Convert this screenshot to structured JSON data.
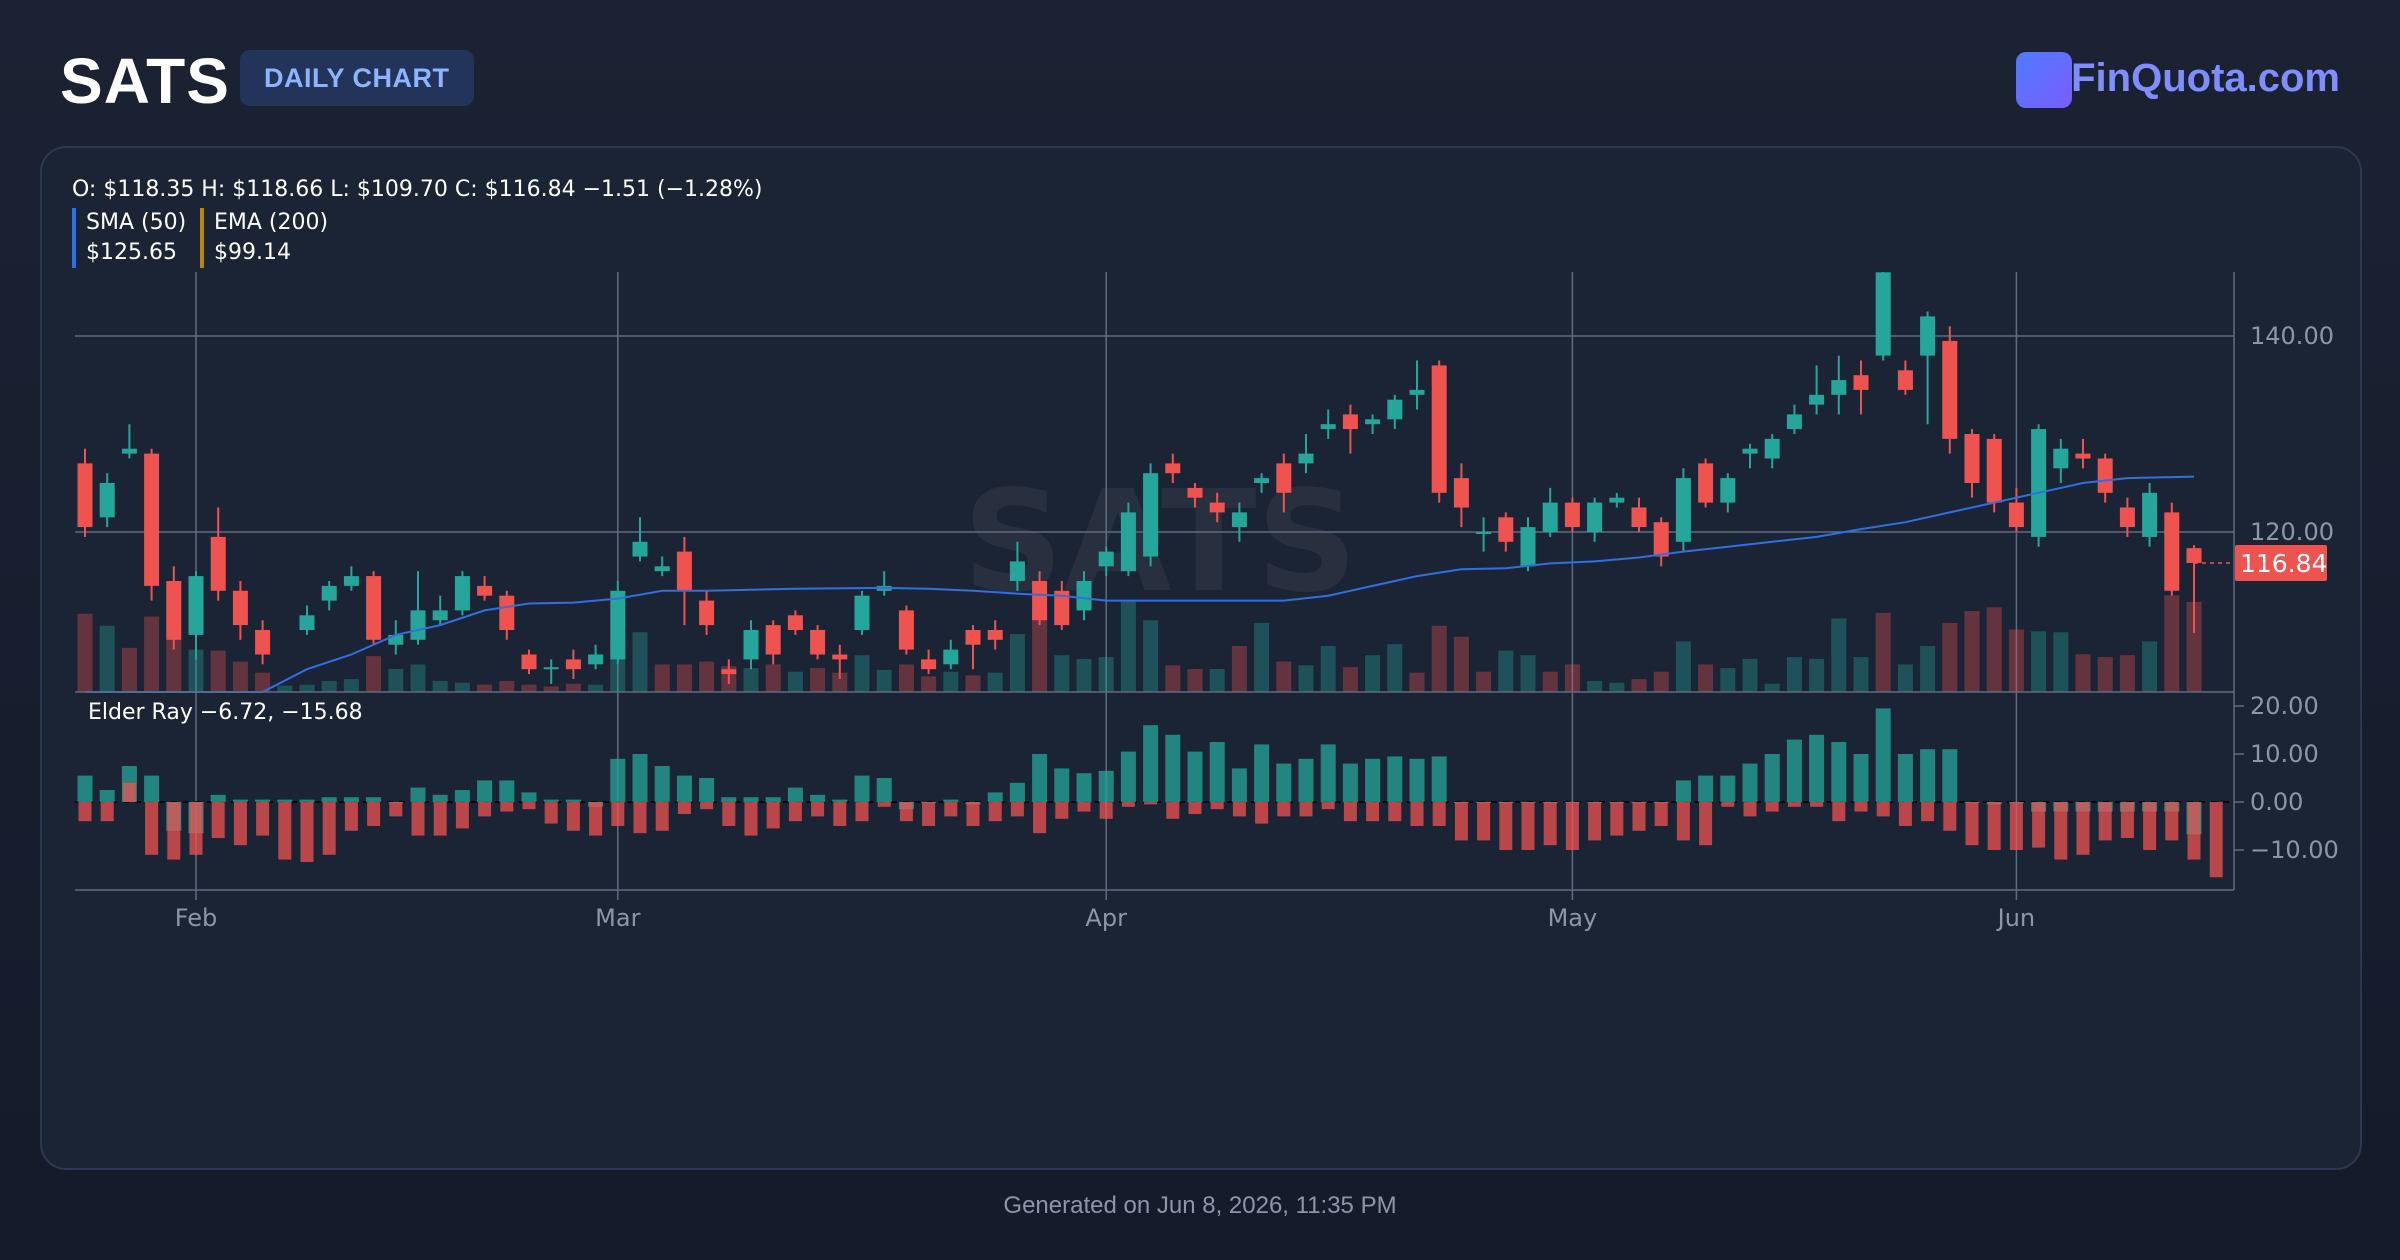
{
  "header": {
    "ticker": "SATS",
    "badge": "DAILY CHART",
    "brand": "FinQuota.com"
  },
  "ohlc_text": "O: $118.35 H: $118.66 L: $109.70 C: $116.84 −1.51 (−1.28%)",
  "legend": {
    "sma_label": "SMA (50)",
    "sma_value": "$125.65",
    "ema_label": "EMA (200)",
    "ema_value": "$99.14"
  },
  "elder_label": "Elder Ray −6.72, −15.68",
  "watermark": "SATS",
  "last_price_label": "116.84",
  "footer": "Generated on Jun 8, 2026, 11:35 PM",
  "colors": {
    "up": "#26a69a",
    "down": "#ef5350",
    "sma": "#2f6fe0",
    "grid": "#5f6b80",
    "axis_text": "#8d96a8"
  },
  "chart_data": {
    "type": "candlestick",
    "price_axis": {
      "ticks": [
        120,
        140
      ],
      "tick_labels": [
        "120.00",
        "140.00"
      ],
      "range": [
        104,
        148
      ]
    },
    "elder_axis": {
      "ticks": [
        20,
        10,
        0,
        -10
      ],
      "tick_labels": [
        "20.00",
        "10.00",
        "0.00",
        "−10.00"
      ],
      "range": [
        -19,
        23
      ]
    },
    "x_ticks": [
      {
        "label": "Feb",
        "index": 5
      },
      {
        "label": "Mar",
        "index": 24
      },
      {
        "label": "Apr",
        "index": 46
      },
      {
        "label": "May",
        "index": 67
      },
      {
        "label": "Jun",
        "index": 87
      }
    ],
    "candles": [
      [
        127.0,
        120.5,
        128.5,
        119.5
      ],
      [
        121.5,
        125.0,
        126.0,
        120.5
      ],
      [
        128.0,
        128.5,
        131.0,
        127.5
      ],
      [
        128.0,
        114.5,
        128.5,
        113.0
      ],
      [
        115.0,
        109.0,
        116.5,
        108.0
      ],
      [
        109.5,
        115.5,
        116.0,
        107.0
      ],
      [
        119.5,
        114.0,
        122.5,
        113.0
      ],
      [
        114.0,
        110.5,
        115.0,
        109.0
      ],
      [
        110.0,
        107.5,
        111.0,
        106.5
      ],
      [
        102.5,
        99.0,
        103.5,
        98.0
      ],
      [
        110.0,
        111.5,
        112.5,
        109.5
      ],
      [
        113.0,
        114.5,
        115.0,
        112.0
      ],
      [
        114.5,
        115.5,
        116.5,
        114.0
      ],
      [
        115.5,
        109.0,
        116.0,
        108.5
      ],
      [
        108.5,
        109.5,
        111.0,
        107.5
      ],
      [
        109.0,
        112.0,
        116.0,
        108.5
      ],
      [
        111.0,
        112.0,
        113.5,
        110.5
      ],
      [
        112.0,
        115.5,
        116.0,
        111.5
      ],
      [
        114.5,
        113.5,
        115.5,
        113.0
      ],
      [
        113.5,
        110.0,
        114.0,
        109.0
      ],
      [
        107.5,
        106.0,
        108.0,
        105.5
      ],
      [
        106.0,
        106.2,
        107.0,
        104.5
      ],
      [
        107.0,
        106.0,
        108.0,
        105.0
      ],
      [
        106.5,
        107.5,
        108.5,
        106.0
      ],
      [
        107.0,
        114.0,
        115.0,
        106.5
      ],
      [
        117.5,
        119.0,
        121.5,
        117.0
      ],
      [
        116.0,
        116.5,
        117.5,
        115.5
      ],
      [
        118.0,
        114.0,
        119.5,
        110.5
      ],
      [
        113.0,
        110.5,
        114.0,
        109.5
      ],
      [
        106.0,
        105.5,
        107.0,
        104.5
      ],
      [
        107.0,
        110.0,
        111.0,
        106.0
      ],
      [
        110.5,
        107.5,
        111.0,
        106.5
      ],
      [
        111.5,
        110.0,
        112.0,
        109.5
      ],
      [
        110.0,
        107.5,
        110.5,
        107.0
      ],
      [
        107.5,
        107.0,
        108.5,
        105.0
      ],
      [
        110.0,
        113.5,
        114.0,
        109.5
      ],
      [
        114.0,
        114.5,
        116.0,
        113.5
      ],
      [
        112.0,
        108.0,
        112.5,
        107.5
      ],
      [
        107.0,
        106.0,
        108.0,
        105.5
      ],
      [
        106.5,
        108.0,
        109.0,
        106.0
      ],
      [
        110.0,
        108.5,
        110.5,
        106.0
      ],
      [
        110.0,
        109.0,
        111.0,
        108.0
      ],
      [
        115.0,
        117.0,
        119.0,
        114.0
      ],
      [
        115.0,
        111.0,
        116.0,
        110.5
      ],
      [
        114.0,
        110.5,
        115.0,
        110.0
      ],
      [
        112.0,
        115.0,
        116.0,
        111.0
      ],
      [
        116.5,
        118.0,
        118.5,
        115.5
      ],
      [
        116.0,
        122.0,
        123.0,
        115.5
      ],
      [
        117.5,
        126.0,
        127.0,
        116.5
      ],
      [
        127.0,
        126.0,
        128.0,
        125.0
      ],
      [
        124.5,
        123.5,
        125.0,
        122.5
      ],
      [
        123.0,
        122.0,
        124.0,
        121.0
      ],
      [
        120.5,
        122.0,
        123.0,
        119.0
      ],
      [
        125.0,
        125.5,
        126.0,
        124.0
      ],
      [
        127.0,
        124.0,
        128.0,
        122.0
      ],
      [
        127.0,
        128.0,
        130.0,
        126.0
      ],
      [
        130.5,
        131.0,
        132.5,
        129.5
      ],
      [
        132.0,
        130.5,
        133.0,
        128.0
      ],
      [
        131.0,
        131.5,
        132.0,
        130.0
      ],
      [
        131.5,
        133.5,
        134.0,
        130.5
      ],
      [
        134.0,
        134.5,
        137.5,
        132.5
      ],
      [
        137.0,
        124.0,
        137.5,
        123.0
      ],
      [
        125.5,
        122.5,
        127.0,
        120.5
      ],
      [
        120.0,
        120.0,
        121.5,
        118.0
      ],
      [
        121.5,
        119.0,
        122.0,
        118.0
      ],
      [
        116.5,
        120.5,
        121.5,
        116.0
      ],
      [
        120.0,
        123.0,
        124.5,
        119.5
      ],
      [
        123.0,
        120.5,
        123.5,
        120.0
      ],
      [
        120.0,
        123.0,
        123.5,
        119.0
      ],
      [
        123.0,
        123.5,
        124.0,
        122.5
      ],
      [
        122.5,
        120.5,
        123.5,
        120.0
      ],
      [
        121.0,
        117.5,
        121.5,
        116.5
      ],
      [
        119.0,
        125.5,
        126.5,
        118.0
      ],
      [
        127.0,
        123.0,
        127.5,
        122.5
      ],
      [
        123.0,
        125.5,
        126.0,
        122.0
      ],
      [
        128.0,
        128.5,
        129.0,
        126.5
      ],
      [
        127.5,
        129.5,
        130.0,
        126.5
      ],
      [
        130.5,
        132.0,
        133.0,
        130.0
      ],
      [
        133.0,
        134.0,
        137.0,
        132.0
      ],
      [
        134.0,
        135.5,
        138.0,
        132.0
      ],
      [
        136.0,
        134.5,
        137.5,
        132.0
      ],
      [
        138.0,
        146.5,
        147.0,
        137.5
      ],
      [
        136.5,
        134.5,
        137.5,
        134.0
      ],
      [
        138.0,
        142.0,
        142.5,
        131.0
      ],
      [
        139.5,
        129.5,
        141.0,
        128.0
      ],
      [
        130.0,
        125.0,
        130.5,
        123.5
      ],
      [
        129.5,
        123.0,
        130.0,
        122.0
      ],
      [
        123.0,
        120.5,
        124.5,
        120.0
      ],
      [
        119.5,
        130.5,
        131.0,
        118.5
      ],
      [
        126.5,
        128.5,
        129.5,
        125.0
      ],
      [
        128.0,
        127.5,
        129.5,
        126.5
      ],
      [
        127.5,
        124.0,
        128.0,
        123.0
      ],
      [
        122.5,
        120.5,
        123.5,
        119.5
      ],
      [
        119.5,
        124.0,
        125.0,
        118.5
      ],
      [
        122.0,
        114.0,
        123.0,
        113.5
      ],
      [
        118.35,
        116.84,
        118.66,
        109.7
      ]
    ],
    "volume": [
      {
        "v": 0.85,
        "up": false
      },
      {
        "v": 0.72,
        "up": true
      },
      {
        "v": 0.48,
        "up": false
      },
      {
        "v": 0.82,
        "up": false
      },
      {
        "v": 0.58,
        "up": false
      },
      {
        "v": 0.46,
        "up": true
      },
      {
        "v": 0.45,
        "up": false
      },
      {
        "v": 0.33,
        "up": false
      },
      {
        "v": 0.21,
        "up": false
      },
      {
        "v": 0.07,
        "up": true
      },
      {
        "v": 0.08,
        "up": true
      },
      {
        "v": 0.12,
        "up": true
      },
      {
        "v": 0.14,
        "up": true
      },
      {
        "v": 0.39,
        "up": false
      },
      {
        "v": 0.25,
        "up": true
      },
      {
        "v": 0.3,
        "up": true
      },
      {
        "v": 0.12,
        "up": true
      },
      {
        "v": 0.1,
        "up": true
      },
      {
        "v": 0.08,
        "up": false
      },
      {
        "v": 0.12,
        "up": false
      },
      {
        "v": 0.08,
        "up": false
      },
      {
        "v": 0.06,
        "up": false
      },
      {
        "v": 0.09,
        "up": false
      },
      {
        "v": 0.08,
        "up": true
      },
      {
        "v": 0.55,
        "up": true
      },
      {
        "v": 0.65,
        "up": true
      },
      {
        "v": 0.3,
        "up": false
      },
      {
        "v": 0.3,
        "up": false
      },
      {
        "v": 0.33,
        "up": false
      },
      {
        "v": 0.28,
        "up": false
      },
      {
        "v": 0.26,
        "up": true
      },
      {
        "v": 0.3,
        "up": false
      },
      {
        "v": 0.22,
        "up": true
      },
      {
        "v": 0.26,
        "up": false
      },
      {
        "v": 0.21,
        "up": false
      },
      {
        "v": 0.4,
        "up": true
      },
      {
        "v": 0.24,
        "up": true
      },
      {
        "v": 0.3,
        "up": false
      },
      {
        "v": 0.17,
        "up": false
      },
      {
        "v": 0.22,
        "up": true
      },
      {
        "v": 0.18,
        "up": false
      },
      {
        "v": 0.21,
        "up": true
      },
      {
        "v": 0.63,
        "up": true
      },
      {
        "v": 0.88,
        "up": false
      },
      {
        "v": 0.4,
        "up": true
      },
      {
        "v": 0.36,
        "up": true
      },
      {
        "v": 0.38,
        "up": true
      },
      {
        "v": 1.0,
        "up": true
      },
      {
        "v": 0.78,
        "up": true
      },
      {
        "v": 0.29,
        "up": false
      },
      {
        "v": 0.25,
        "up": false
      },
      {
        "v": 0.25,
        "up": true
      },
      {
        "v": 0.5,
        "up": false
      },
      {
        "v": 0.75,
        "up": true
      },
      {
        "v": 0.33,
        "up": false
      },
      {
        "v": 0.29,
        "up": true
      },
      {
        "v": 0.5,
        "up": true
      },
      {
        "v": 0.27,
        "up": false
      },
      {
        "v": 0.4,
        "up": true
      },
      {
        "v": 0.52,
        "up": true
      },
      {
        "v": 0.21,
        "up": false
      },
      {
        "v": 0.72,
        "up": false
      },
      {
        "v": 0.6,
        "up": false
      },
      {
        "v": 0.22,
        "up": false
      },
      {
        "v": 0.45,
        "up": true
      },
      {
        "v": 0.4,
        "up": true
      },
      {
        "v": 0.22,
        "up": false
      },
      {
        "v": 0.3,
        "up": false
      },
      {
        "v": 0.12,
        "up": true
      },
      {
        "v": 0.1,
        "up": true
      },
      {
        "v": 0.14,
        "up": false
      },
      {
        "v": 0.22,
        "up": false
      },
      {
        "v": 0.55,
        "up": true
      },
      {
        "v": 0.3,
        "up": false
      },
      {
        "v": 0.26,
        "up": true
      },
      {
        "v": 0.36,
        "up": true
      },
      {
        "v": 0.09,
        "up": true
      },
      {
        "v": 0.38,
        "up": true
      },
      {
        "v": 0.36,
        "up": true
      },
      {
        "v": 0.8,
        "up": true
      },
      {
        "v": 0.38,
        "up": true
      },
      {
        "v": 0.86,
        "up": false
      },
      {
        "v": 0.3,
        "up": true
      },
      {
        "v": 0.5,
        "up": true
      },
      {
        "v": 0.75,
        "up": false
      },
      {
        "v": 0.88,
        "up": false
      },
      {
        "v": 0.92,
        "up": false
      },
      {
        "v": 0.68,
        "up": false
      },
      {
        "v": 0.66,
        "up": true
      },
      {
        "v": 0.65,
        "up": true
      },
      {
        "v": 0.41,
        "up": false
      },
      {
        "v": 0.38,
        "up": false
      },
      {
        "v": 0.4,
        "up": false
      },
      {
        "v": 0.55,
        "up": true
      },
      {
        "v": 1.05,
        "up": false
      },
      {
        "v": 0.98,
        "up": false
      }
    ],
    "sma": [
      [
        0,
        103.0
      ],
      [
        3,
        102.0
      ],
      [
        6,
        102.5
      ],
      [
        8,
        103.5
      ],
      [
        10,
        106.0
      ],
      [
        12,
        107.5
      ],
      [
        14,
        109.5
      ],
      [
        16,
        110.5
      ],
      [
        18,
        112.0
      ],
      [
        20,
        112.7
      ],
      [
        22,
        112.8
      ],
      [
        24,
        113.2
      ],
      [
        26,
        114.0
      ],
      [
        28,
        114.0
      ],
      [
        32,
        114.2
      ],
      [
        36,
        114.3
      ],
      [
        38,
        114.2
      ],
      [
        40,
        114.0
      ],
      [
        42,
        113.7
      ],
      [
        44,
        113.5
      ],
      [
        46,
        113.0
      ],
      [
        48,
        113.0
      ],
      [
        50,
        113.0
      ],
      [
        52,
        113.0
      ],
      [
        54,
        113.0
      ],
      [
        56,
        113.5
      ],
      [
        57,
        114.0
      ],
      [
        58,
        114.5
      ],
      [
        60,
        115.5
      ],
      [
        62,
        116.2
      ],
      [
        64,
        116.3
      ],
      [
        66,
        116.8
      ],
      [
        68,
        117.0
      ],
      [
        70,
        117.4
      ],
      [
        72,
        118.0
      ],
      [
        74,
        118.5
      ],
      [
        76,
        119.0
      ],
      [
        78,
        119.5
      ],
      [
        80,
        120.3
      ],
      [
        82,
        121.0
      ],
      [
        84,
        122.0
      ],
      [
        86,
        123.0
      ],
      [
        88,
        124.0
      ],
      [
        90,
        125.0
      ],
      [
        92,
        125.5
      ],
      [
        94,
        125.6
      ],
      [
        95,
        125.65
      ]
    ],
    "elder_bull": [
      5.5,
      2.5,
      7.5,
      5.5,
      -6,
      -6.5,
      1.5,
      0.5,
      0.5,
      0.5,
      0.5,
      1,
      1,
      1,
      0,
      3,
      1.5,
      2.5,
      4.5,
      4.5,
      2,
      0.5,
      0.5,
      -1,
      9,
      10,
      7.5,
      5.5,
      5,
      1,
      1,
      1,
      3,
      1.5,
      0.5,
      5.5,
      5,
      -1.5,
      0,
      0.5,
      -0.5,
      2,
      4,
      10,
      7,
      6,
      6.5,
      10.5,
      16,
      14,
      10.5,
      12.5,
      7,
      12,
      8,
      9,
      12,
      8,
      9,
      9.5,
      9,
      9.5,
      0,
      0,
      0,
      0,
      0,
      0,
      0,
      0,
      0,
      0,
      4.5,
      5.5,
      5.5,
      8,
      10,
      13,
      14,
      12.5,
      10,
      19.5,
      10,
      11,
      11,
      0,
      -0.5,
      0,
      -2,
      -2,
      -2,
      -2,
      -2,
      -2,
      -2,
      -6.72
    ],
    "elder_bear": [
      -4,
      -4,
      4,
      -11,
      -12,
      -11,
      -7.5,
      -9,
      -7,
      -12,
      -12.5,
      -11,
      -6,
      -5,
      -3,
      -7,
      -7,
      -5.5,
      -3,
      -2,
      -1.5,
      -4.5,
      -6,
      -7,
      -5,
      -6.5,
      -6,
      -2.5,
      -1.5,
      -5,
      -7,
      -5.5,
      -4,
      -3,
      -5,
      -4,
      -1,
      -4,
      -5,
      -3,
      -5,
      -4,
      -3,
      -6.5,
      -3.5,
      -2,
      -3.5,
      -1,
      -0.5,
      -3.5,
      -2.5,
      -1.5,
      -3,
      -4.5,
      -3,
      -3,
      -1.5,
      -4,
      -4,
      -4,
      -5,
      -5,
      -8,
      -8,
      -10,
      -10,
      -9,
      -10,
      -8,
      -7,
      -6,
      -5,
      -8,
      -9,
      -1,
      -3,
      -2,
      -1,
      -1,
      -4,
      -2,
      -3,
      -5,
      -4,
      -6,
      -9,
      -10,
      -10,
      -9.5,
      -12,
      -11,
      -8,
      -7.5,
      -10,
      -8,
      -12,
      -15.68
    ]
  }
}
